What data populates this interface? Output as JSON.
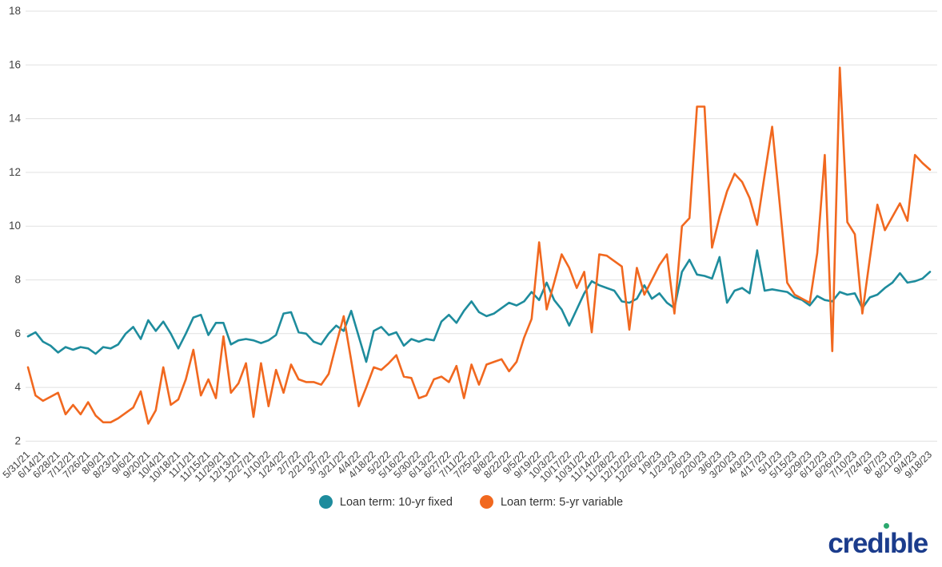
{
  "branding": {
    "logo_text_part1": "cred",
    "logo_text_i": "ı",
    "logo_text_part2": "ble",
    "logo_color": "#1b3c8c",
    "logo_dot_color": "#2ba86e"
  },
  "chart_data": {
    "type": "line",
    "title": "",
    "xlabel": "",
    "ylabel": "",
    "ylim": [
      2,
      18
    ],
    "yticks": [
      2,
      4,
      6,
      8,
      10,
      12,
      14,
      16,
      18
    ],
    "grid": true,
    "legend_position": "bottom",
    "x_tick_labels": [
      "5/31/21",
      "6/14/21",
      "6/28/21",
      "7/12/21",
      "7/26/21",
      "8/9/21",
      "8/23/21",
      "9/6/21",
      "9/20/21",
      "10/4/21",
      "10/18/21",
      "11/1/21",
      "11/15/21",
      "11/29/21",
      "12/13/21",
      "12/27/21",
      "1/10/22",
      "1/24/22",
      "2/7/22",
      "2/21/22",
      "3/7/22",
      "3/21/22",
      "4/4/22",
      "4/18/22",
      "5/2/22",
      "5/16/22",
      "5/30/22",
      "6/13/22",
      "6/27/22",
      "7/11/22",
      "7/25/22",
      "8/8/22",
      "8/22/22",
      "9/5/22",
      "9/19/22",
      "10/3/22",
      "10/17/22",
      "10/31/22",
      "11/14/22",
      "11/28/22",
      "12/12/22",
      "12/26/22",
      "1/9/23",
      "1/23/23",
      "2/6/23",
      "2/20/23",
      "3/6/23",
      "3/20/23",
      "4/3/23",
      "4/17/23",
      "5/1/23",
      "5/15/23",
      "5/29/23",
      "6/12/23",
      "6/26/23",
      "7/10/23",
      "7/24/23",
      "8/7/23",
      "8/21/23",
      "9/4/23",
      "9/18/23"
    ],
    "x_points_per_tick": 2,
    "series": [
      {
        "name": "Loan term: 10-yr fixed",
        "color": "#1e8c9d",
        "values": [
          5.9,
          6.05,
          5.7,
          5.55,
          5.3,
          5.5,
          5.4,
          5.5,
          5.45,
          5.25,
          5.5,
          5.45,
          5.6,
          6.0,
          6.25,
          5.8,
          6.5,
          6.1,
          6.45,
          6.0,
          5.45,
          6.0,
          6.6,
          6.7,
          5.95,
          6.4,
          6.4,
          5.6,
          5.75,
          5.8,
          5.75,
          5.65,
          5.75,
          5.95,
          6.75,
          6.8,
          6.05,
          6.0,
          5.7,
          5.6,
          6.0,
          6.3,
          6.1,
          6.85,
          5.9,
          4.95,
          6.1,
          6.25,
          5.95,
          6.05,
          5.55,
          5.8,
          5.7,
          5.8,
          5.75,
          6.45,
          6.7,
          6.4,
          6.85,
          7.2,
          6.8,
          6.65,
          6.75,
          6.95,
          7.15,
          7.05,
          7.2,
          7.55,
          7.25,
          7.9,
          7.25,
          6.9,
          6.3,
          6.9,
          7.5,
          7.95,
          7.8,
          7.7,
          7.6,
          7.2,
          7.15,
          7.3,
          7.8,
          7.3,
          7.5,
          7.15,
          6.95,
          8.3,
          8.75,
          8.2,
          8.15,
          8.05,
          8.85,
          7.15,
          7.6,
          7.7,
          7.5,
          9.1,
          7.6,
          7.65,
          7.6,
          7.55,
          7.35,
          7.25,
          7.05,
          7.4,
          7.25,
          7.2,
          7.55,
          7.45,
          7.5,
          6.95,
          7.35,
          7.45,
          7.7,
          7.9,
          8.25,
          7.9,
          7.95,
          8.05,
          8.3
        ]
      },
      {
        "name": "Loan term: 5-yr variable",
        "color": "#f1681f",
        "values": [
          4.75,
          3.7,
          3.5,
          3.65,
          3.8,
          3.0,
          3.35,
          3.0,
          3.45,
          2.95,
          2.7,
          2.7,
          2.85,
          3.05,
          3.25,
          3.85,
          2.65,
          3.15,
          4.75,
          3.35,
          3.55,
          4.3,
          5.4,
          3.7,
          4.3,
          3.6,
          5.9,
          3.8,
          4.15,
          4.9,
          2.9,
          4.9,
          3.3,
          4.65,
          3.8,
          4.85,
          4.3,
          4.2,
          4.2,
          4.1,
          4.5,
          5.6,
          6.65,
          5.0,
          3.3,
          4.0,
          4.75,
          4.65,
          4.9,
          5.2,
          4.4,
          4.35,
          3.6,
          3.7,
          4.3,
          4.4,
          4.2,
          4.8,
          3.6,
          4.85,
          4.1,
          4.85,
          4.95,
          5.05,
          4.6,
          4.95,
          5.85,
          6.55,
          9.4,
          6.9,
          7.9,
          8.95,
          8.45,
          7.7,
          8.3,
          6.05,
          8.95,
          8.9,
          8.7,
          8.5,
          6.15,
          8.45,
          7.45,
          8.0,
          8.55,
          8.95,
          6.75,
          10.0,
          10.3,
          14.45,
          14.45,
          9.2,
          10.35,
          11.3,
          11.95,
          11.65,
          11.05,
          10.05,
          11.9,
          13.7,
          10.85,
          7.9,
          7.45,
          7.3,
          7.15,
          9.0,
          12.65,
          5.35,
          15.9,
          10.15,
          9.7,
          6.75,
          8.8,
          10.8,
          9.85,
          10.35,
          10.85,
          10.2,
          12.65,
          12.35,
          12.1
        ]
      }
    ],
    "axis_text_color": "#444444",
    "grid_color": "#e1e1e1"
  }
}
